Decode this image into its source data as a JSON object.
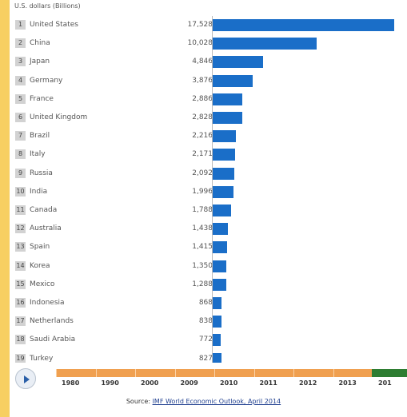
{
  "chart_data": {
    "type": "bar",
    "orientation": "horizontal",
    "title": "U.S. dollars (Billions)",
    "categories": [
      "United States",
      "China",
      "Japan",
      "Germany",
      "France",
      "United Kingdom",
      "Brazil",
      "Italy",
      "Russia",
      "India",
      "Canada",
      "Australia",
      "Spain",
      "Korea",
      "Mexico",
      "Indonesia",
      "Netherlands",
      "Saudi Arabia",
      "Turkey"
    ],
    "ranks": [
      "1",
      "2",
      "3",
      "4",
      "5",
      "6",
      "7",
      "8",
      "9",
      "10",
      "11",
      "12",
      "13",
      "14",
      "15",
      "16",
      "17",
      "18",
      "19"
    ],
    "value_labels": [
      "17,528",
      "10,028",
      "4,846",
      "3,876",
      "2,886",
      "2,828",
      "2,216",
      "2,171",
      "2,092",
      "1,996",
      "1,788",
      "1,438",
      "1,415",
      "1,350",
      "1,288",
      "868",
      "838",
      "772",
      "827"
    ],
    "values": [
      17528,
      10028,
      4846,
      3876,
      2886,
      2828,
      2216,
      2171,
      2092,
      1996,
      1788,
      1438,
      1415,
      1350,
      1288,
      868,
      838,
      772,
      827
    ],
    "xlim": [
      0,
      17528
    ],
    "grid": false
  },
  "timeline": {
    "play_icon": "play-icon",
    "years": [
      "1980",
      "1990",
      "2000",
      "2009",
      "2010",
      "2011",
      "2012",
      "2013",
      "201"
    ],
    "track_color": "#f0a050",
    "current_color": "#2e7d32"
  },
  "source": {
    "prefix": "Source: ",
    "link_text": "IMF World Economic Outlook, April 2014"
  }
}
